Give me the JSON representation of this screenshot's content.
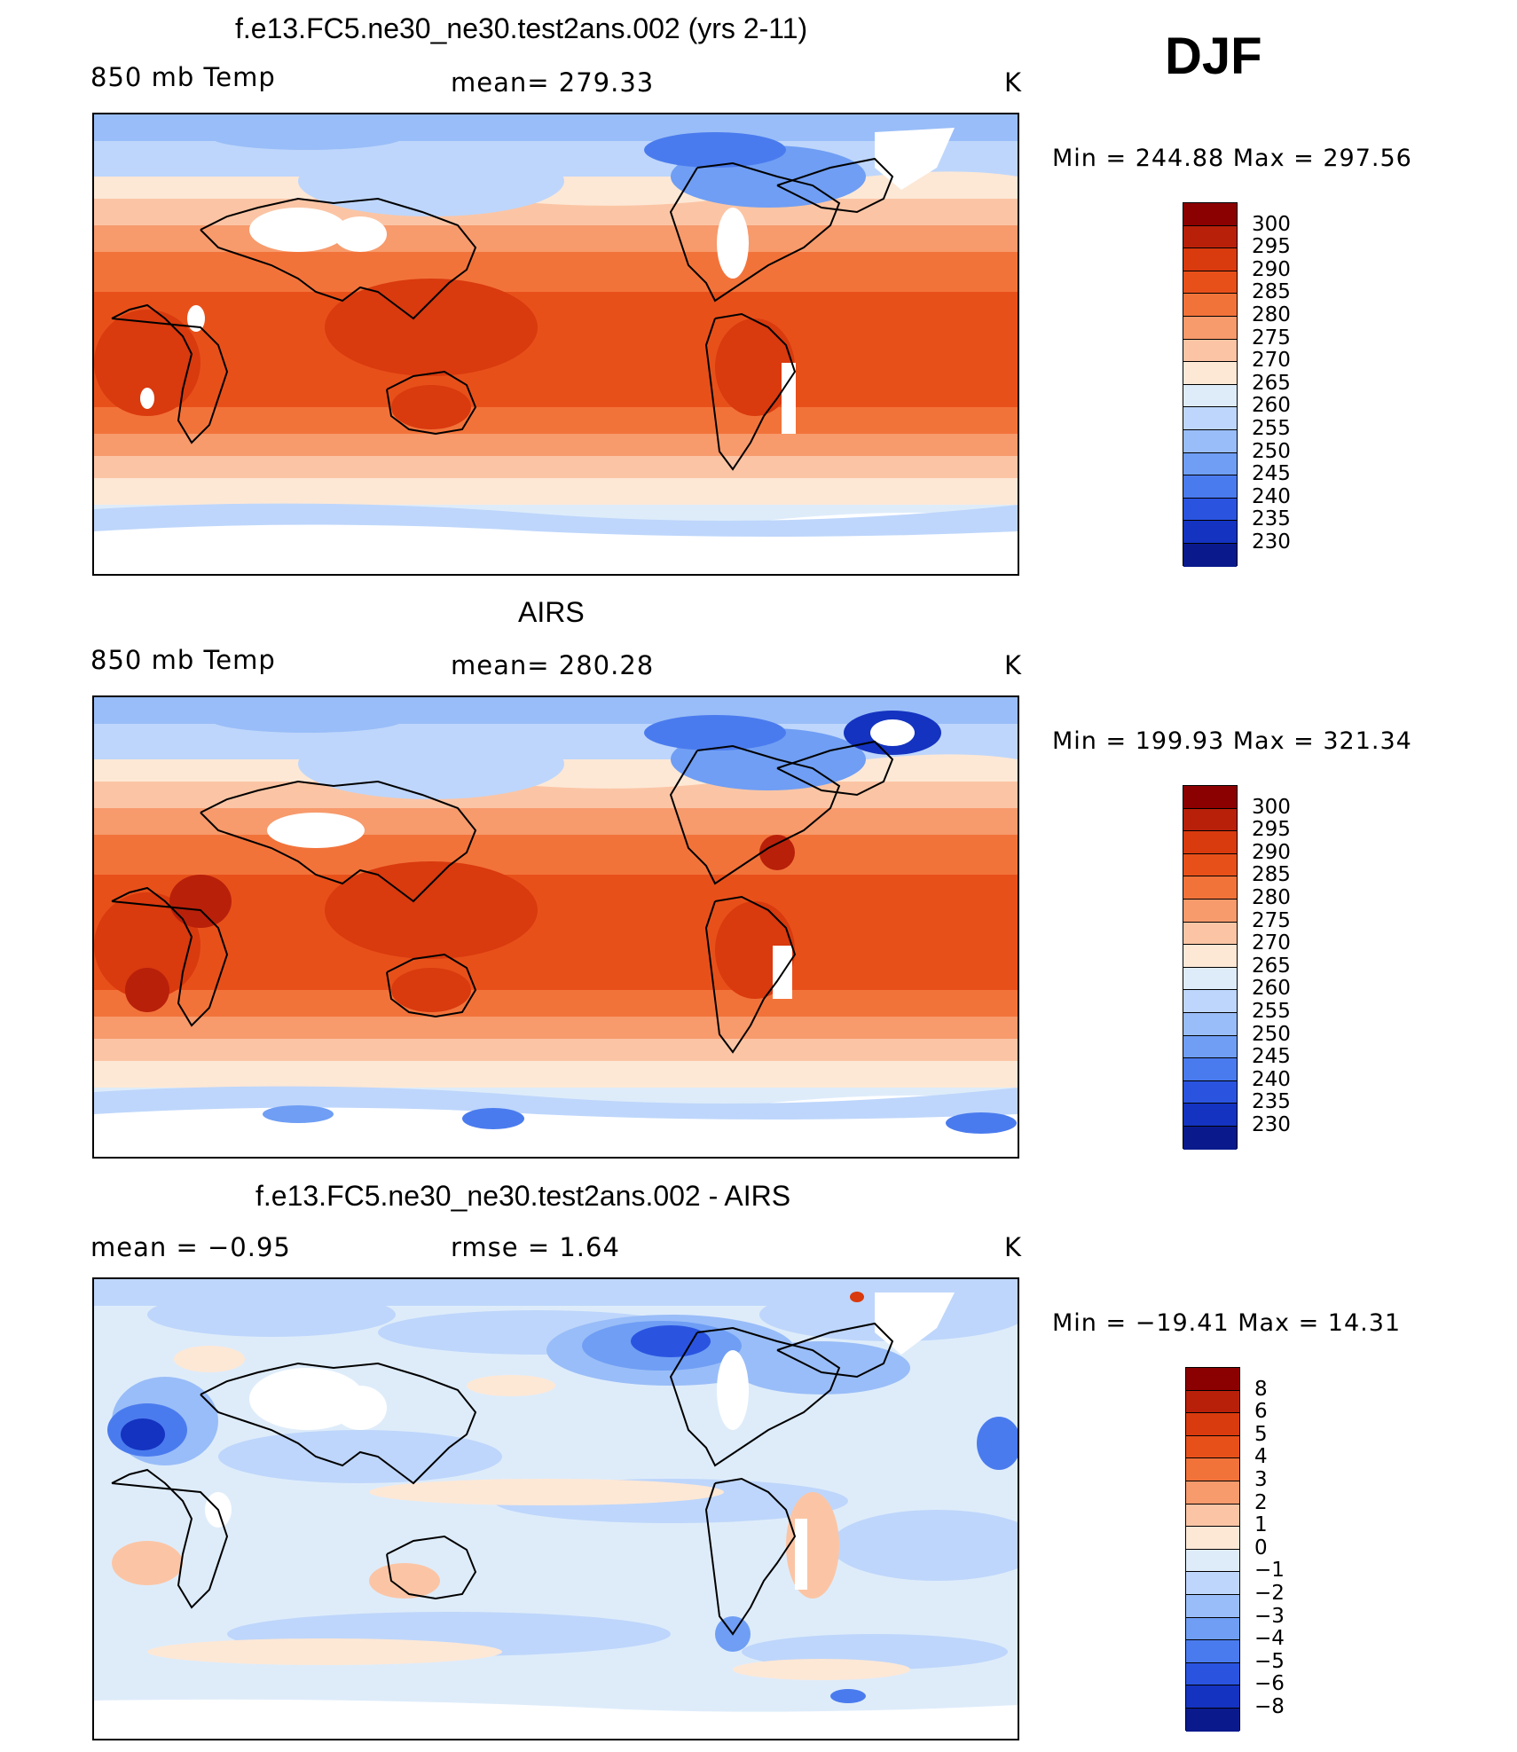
{
  "season": "DJF",
  "panels": [
    {
      "title": "f.e13.FC5.ne30_ne30.test2ans.002 (yrs 2-11)",
      "left_label": "850 mb Temp",
      "center_label": "mean=  279.33",
      "units": "K",
      "min_max": "Min  =  244.88  Max  =  297.56",
      "colorbar": {
        "levels": [
          "300",
          "295",
          "290",
          "285",
          "280",
          "275",
          "270",
          "265",
          "260",
          "255",
          "250",
          "245",
          "240",
          "235",
          "230"
        ],
        "colors": [
          "#8b0000",
          "#b8200a",
          "#d93a0e",
          "#e8501a",
          "#f2733a",
          "#f79a6c",
          "#fbc5a5",
          "#fde8d6",
          "#deecfa",
          "#bed6fb",
          "#99bdf8",
          "#6f9ef4",
          "#4a7bee",
          "#2a54e0",
          "#1433c0",
          "#0a1a8c"
        ]
      }
    },
    {
      "title": "AIRS",
      "left_label": "850 mb Temp",
      "center_label": "mean=  280.28",
      "units": "K",
      "min_max": "Min  =  199.93  Max  =  321.34",
      "colorbar": {
        "levels": [
          "300",
          "295",
          "290",
          "285",
          "280",
          "275",
          "270",
          "265",
          "260",
          "255",
          "250",
          "245",
          "240",
          "235",
          "230"
        ],
        "colors": [
          "#8b0000",
          "#b8200a",
          "#d93a0e",
          "#e8501a",
          "#f2733a",
          "#f79a6c",
          "#fbc5a5",
          "#fde8d6",
          "#deecfa",
          "#bed6fb",
          "#99bdf8",
          "#6f9ef4",
          "#4a7bee",
          "#2a54e0",
          "#1433c0",
          "#0a1a8c"
        ]
      }
    },
    {
      "title": "f.e13.FC5.ne30_ne30.test2ans.002 - AIRS",
      "left_label": "mean  =    −0.95",
      "center_label": "rmse  =     1.64",
      "units": "K",
      "min_max": "Min  =  −19.41  Max  =    14.31",
      "colorbar": {
        "levels": [
          "8",
          "6",
          "5",
          "4",
          "3",
          "2",
          "1",
          "0",
          "−1",
          "−2",
          "−3",
          "−4",
          "−5",
          "−6",
          "−8"
        ],
        "colors": [
          "#8b0000",
          "#b8200a",
          "#d93a0e",
          "#e8501a",
          "#f2733a",
          "#f79a6c",
          "#fbc5a5",
          "#fde8d6",
          "#deecfa",
          "#bed6fb",
          "#99bdf8",
          "#6f9ef4",
          "#4a7bee",
          "#2a54e0",
          "#1433c0",
          "#0a1a8c"
        ]
      }
    }
  ]
}
